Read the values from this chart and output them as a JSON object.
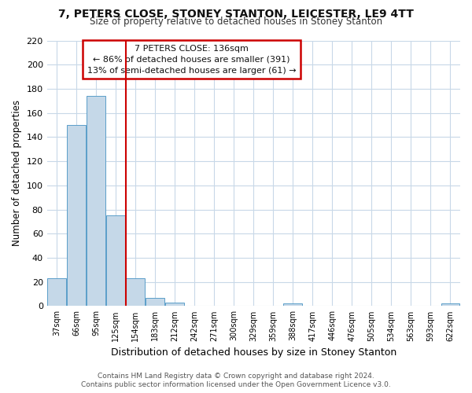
{
  "title": "7, PETERS CLOSE, STONEY STANTON, LEICESTER, LE9 4TT",
  "subtitle": "Size of property relative to detached houses in Stoney Stanton",
  "xlabel": "Distribution of detached houses by size in Stoney Stanton",
  "ylabel": "Number of detached properties",
  "bin_labels": [
    "37sqm",
    "66sqm",
    "95sqm",
    "125sqm",
    "154sqm",
    "183sqm",
    "212sqm",
    "242sqm",
    "271sqm",
    "300sqm",
    "329sqm",
    "359sqm",
    "388sqm",
    "417sqm",
    "446sqm",
    "476sqm",
    "505sqm",
    "534sqm",
    "563sqm",
    "593sqm",
    "622sqm"
  ],
  "bar_values": [
    23,
    150,
    174,
    75,
    23,
    7,
    3,
    0,
    0,
    0,
    0,
    0,
    2,
    0,
    0,
    0,
    0,
    0,
    0,
    0,
    2
  ],
  "bar_color": "#c5d8e8",
  "bar_edge_color": "#5a9ec9",
  "vline_color": "#cc0000",
  "ylim": [
    0,
    220
  ],
  "yticks": [
    0,
    20,
    40,
    60,
    80,
    100,
    120,
    140,
    160,
    180,
    200,
    220
  ],
  "annotation_text_line1": "7 PETERS CLOSE: 136sqm",
  "annotation_text_line2": "← 86% of detached houses are smaller (391)",
  "annotation_text_line3": "13% of semi-detached houses are larger (61) →",
  "footer_line1": "Contains HM Land Registry data © Crown copyright and database right 2024.",
  "footer_line2": "Contains public sector information licensed under the Open Government Licence v3.0.",
  "bg_color": "#ffffff",
  "grid_color": "#c8d8e8"
}
